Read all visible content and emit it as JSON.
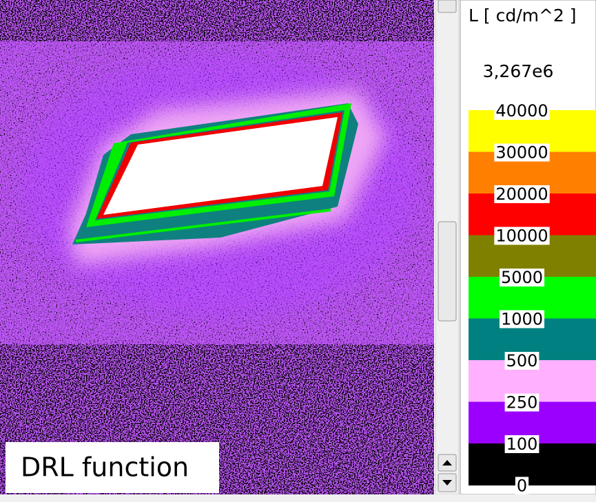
{
  "image_label": "DRL function",
  "legend": {
    "title": "L [ cd/m^2 ]",
    "max": "3,267e6",
    "levels": [
      "40000",
      "30000",
      "20000",
      "10000",
      "5000",
      "1000",
      "500",
      "250",
      "100",
      "0"
    ]
  }
}
